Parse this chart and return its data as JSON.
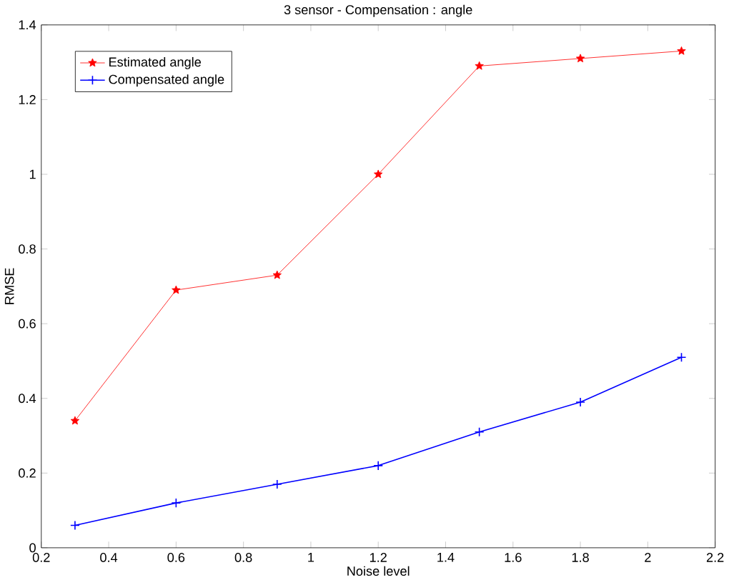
{
  "chart_data": {
    "type": "line",
    "title": "3 sensor - Compensation : angle",
    "xlabel": "Noise level",
    "ylabel": "RMSE",
    "x": [
      0.3,
      0.6,
      0.9,
      1.2,
      1.5,
      1.8,
      2.1
    ],
    "series": [
      {
        "name": "Estimated angle",
        "color": "#ff0000",
        "marker": "star",
        "values": [
          0.34,
          0.69,
          0.73,
          1.0,
          1.29,
          1.31,
          1.33
        ]
      },
      {
        "name": "Compensated angle",
        "color": "#0000ff",
        "marker": "cross",
        "values": [
          0.06,
          0.12,
          0.17,
          0.22,
          0.31,
          0.39,
          0.51
        ]
      }
    ],
    "xlim": [
      0.2,
      2.2
    ],
    "xticks": [
      0.2,
      0.4,
      0.6,
      0.8,
      1,
      1.2,
      1.4,
      1.6,
      1.8,
      2,
      2.2
    ],
    "ylim": [
      0,
      1.4
    ],
    "yticks": [
      0,
      0.2,
      0.4,
      0.6,
      0.8,
      1,
      1.2,
      1.4
    ],
    "grid": false,
    "legend": "top left",
    "line_style": "solid"
  }
}
